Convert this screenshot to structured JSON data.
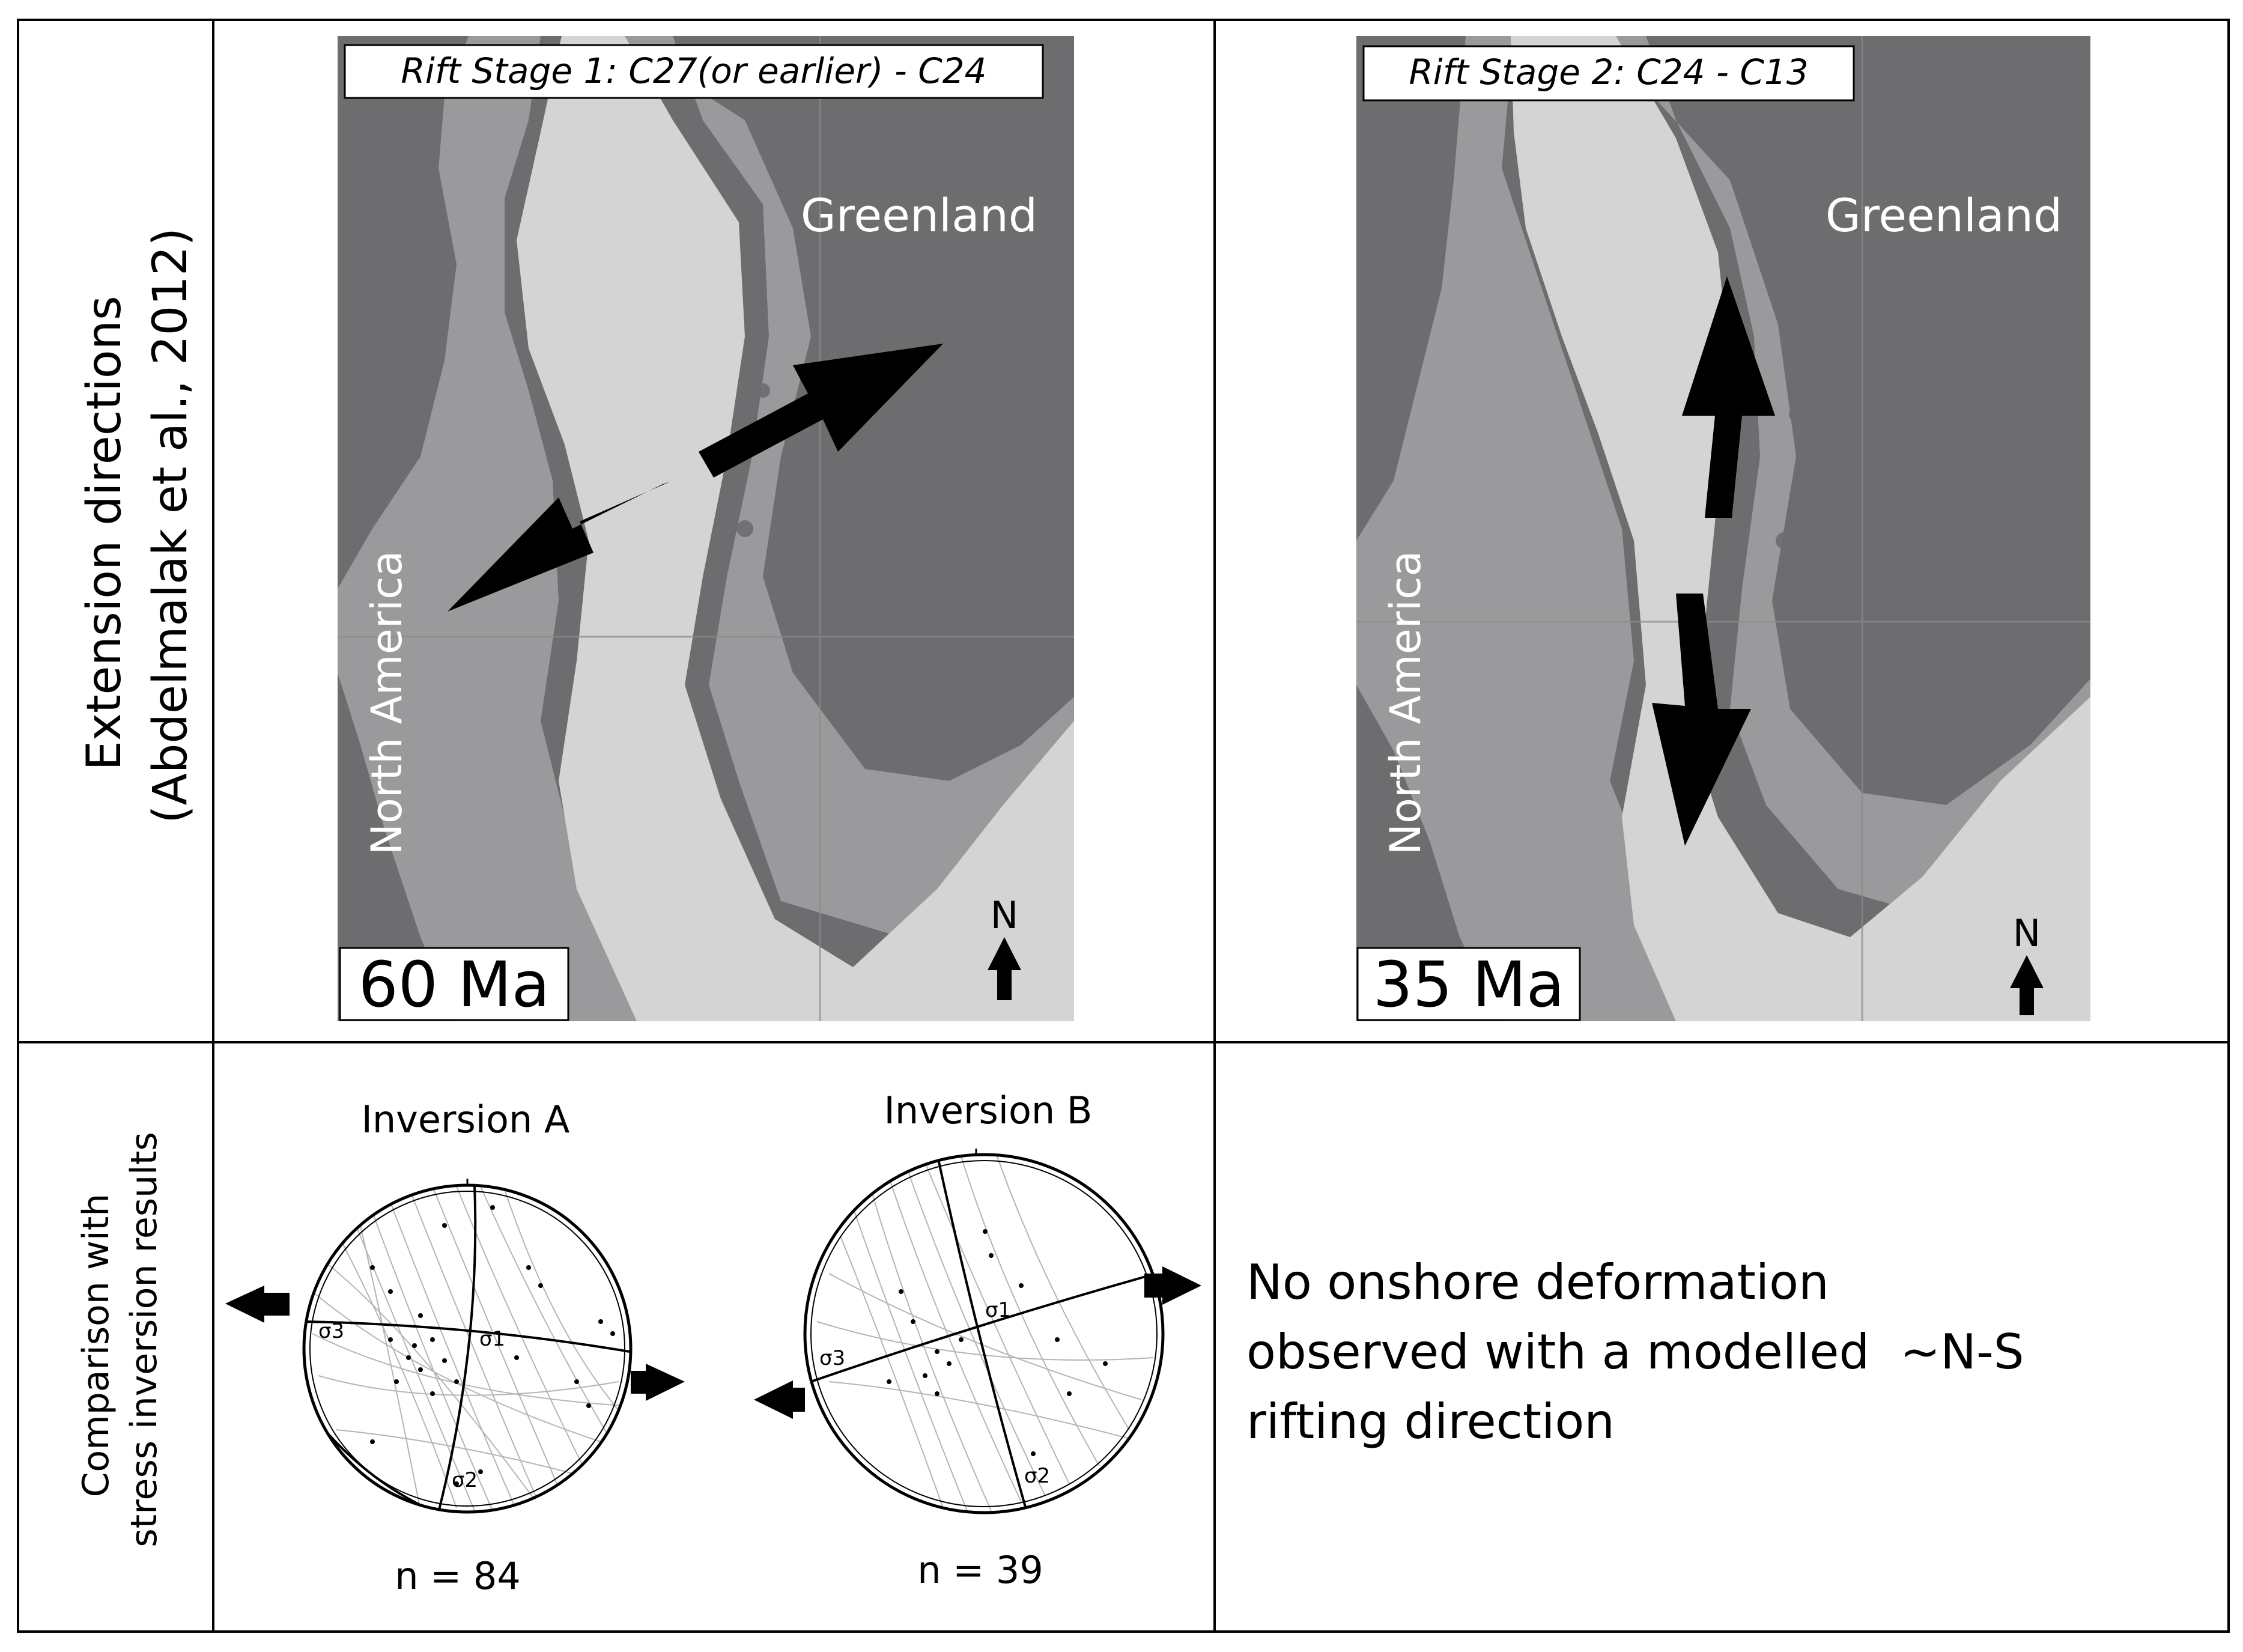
{
  "row1_label": [
    "Extension directions",
    "(Abdelmalak et al., 2012)"
  ],
  "row2_label": [
    "Comparison with",
    "stress inversion results"
  ],
  "map1": {
    "title": "Rift Stage 1: C27(or earlier) - C24",
    "age": "60 Ma",
    "greenland_label": "Greenland",
    "america_label": "North America",
    "north_label": "N",
    "extension_direction": "NE-SW"
  },
  "map2": {
    "title": "Rift Stage 2: C24 - C13",
    "age": "35 Ma",
    "greenland_label": "Greenland",
    "america_label": "North America",
    "north_label": "N",
    "extension_direction": "N-S"
  },
  "inversion_a": {
    "title": "Inversion A",
    "n_label": "n = 84",
    "sigma1": "σ1",
    "sigma2": "σ2",
    "sigma3": "σ3"
  },
  "inversion_b": {
    "title": "Inversion B",
    "n_label": "n = 39",
    "sigma1": "σ1",
    "sigma2": "σ2",
    "sigma3": "σ3"
  },
  "note_lines": [
    "No onshore deformation",
    "observed with a modelled  ~N-S",
    "rifting direction"
  ],
  "colors": {
    "land": "#6d6d6f",
    "shelf": "#9a9a9c",
    "ocean": "#d4d4d4",
    "arrow": "#000000",
    "border": "#000000"
  }
}
